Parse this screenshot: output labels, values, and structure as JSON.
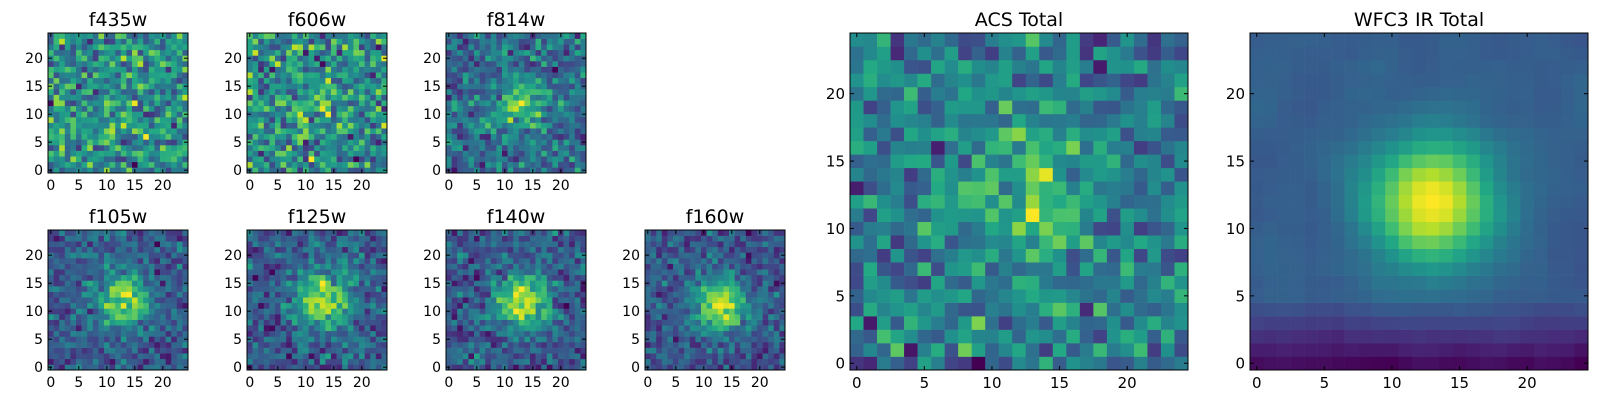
{
  "chart_data": [
    {
      "id": "f435w",
      "type": "heatmap",
      "title": "f435w",
      "grid_size": 25,
      "xlim": [
        0,
        24
      ],
      "ylim": [
        0,
        24
      ],
      "xticks": [
        "0",
        "5",
        "10",
        "15",
        "20"
      ],
      "yticks": [
        "0",
        "5",
        "10",
        "15",
        "20"
      ],
      "source_peak": [
        12,
        12
      ],
      "source_strength": 0.05,
      "noise": 0.5,
      "seed": 11
    },
    {
      "id": "f606w",
      "type": "heatmap",
      "title": "f606w",
      "grid_size": 25,
      "xlim": [
        0,
        24
      ],
      "ylim": [
        0,
        24
      ],
      "xticks": [
        "0",
        "5",
        "10",
        "15",
        "20"
      ],
      "yticks": [
        "0",
        "5",
        "10",
        "15",
        "20"
      ],
      "source_peak": [
        12,
        12
      ],
      "source_strength": 0.1,
      "noise": 0.45,
      "seed": 23
    },
    {
      "id": "f814w",
      "type": "heatmap",
      "title": "f814w",
      "grid_size": 25,
      "xlim": [
        0,
        24
      ],
      "ylim": [
        0,
        24
      ],
      "xticks": [
        "0",
        "5",
        "10",
        "15",
        "20"
      ],
      "yticks": [
        "0",
        "5",
        "10",
        "15",
        "20"
      ],
      "source_peak": [
        13,
        12
      ],
      "source_strength": 0.35,
      "noise": 0.38,
      "seed": 37
    },
    {
      "id": "f105w",
      "type": "heatmap",
      "title": "f105w",
      "grid_size": 25,
      "xlim": [
        0,
        24
      ],
      "ylim": [
        0,
        24
      ],
      "xticks": [
        "0",
        "5",
        "10",
        "15",
        "20"
      ],
      "yticks": [
        "0",
        "5",
        "10",
        "15",
        "20"
      ],
      "source_peak": [
        13,
        12
      ],
      "source_strength": 0.55,
      "noise": 0.3,
      "seed": 41
    },
    {
      "id": "f125w",
      "type": "heatmap",
      "title": "f125w",
      "grid_size": 25,
      "xlim": [
        0,
        24
      ],
      "ylim": [
        0,
        24
      ],
      "xticks": [
        "0",
        "5",
        "10",
        "15",
        "20"
      ],
      "yticks": [
        "0",
        "5",
        "10",
        "15",
        "20"
      ],
      "source_peak": [
        13,
        12
      ],
      "source_strength": 0.55,
      "noise": 0.3,
      "seed": 53
    },
    {
      "id": "f140w",
      "type": "heatmap",
      "title": "f140w",
      "grid_size": 25,
      "xlim": [
        0,
        24
      ],
      "ylim": [
        0,
        24
      ],
      "xticks": [
        "0",
        "5",
        "10",
        "15",
        "20"
      ],
      "yticks": [
        "0",
        "5",
        "10",
        "15",
        "20"
      ],
      "source_peak": [
        13,
        12
      ],
      "source_strength": 0.6,
      "noise": 0.3,
      "seed": 67
    },
    {
      "id": "f160w",
      "type": "heatmap",
      "title": "f160w",
      "grid_size": 25,
      "xlim": [
        0,
        24
      ],
      "ylim": [
        0,
        24
      ],
      "xticks": [
        "0",
        "5",
        "10",
        "15",
        "20"
      ],
      "yticks": [
        "0",
        "5",
        "10",
        "15",
        "20"
      ],
      "source_peak": [
        13,
        11
      ],
      "source_strength": 0.65,
      "noise": 0.3,
      "seed": 79
    },
    {
      "id": "acs_total",
      "type": "heatmap",
      "title": "ACS Total",
      "grid_size": 25,
      "xlim": [
        0,
        24
      ],
      "ylim": [
        0,
        24
      ],
      "xticks": [
        "0",
        "5",
        "10",
        "15",
        "20"
      ],
      "yticks": [
        "0",
        "5",
        "10",
        "15",
        "20"
      ],
      "source_peak": [
        13,
        12
      ],
      "source_strength": 0.3,
      "noise": 0.42,
      "seed": 97
    },
    {
      "id": "wfc3_ir_total",
      "type": "heatmap",
      "title": "WFC3 IR Total",
      "grid_size": 25,
      "xlim": [
        0,
        24
      ],
      "ylim": [
        0,
        24
      ],
      "xticks": [
        "0",
        "5",
        "10",
        "15",
        "20"
      ],
      "yticks": [
        "0",
        "5",
        "10",
        "15",
        "20"
      ],
      "source_peak": [
        13,
        12
      ],
      "source_strength": 0.85,
      "noise": 0.12,
      "seed": 131
    }
  ],
  "colormap": "viridis",
  "grid": false
}
